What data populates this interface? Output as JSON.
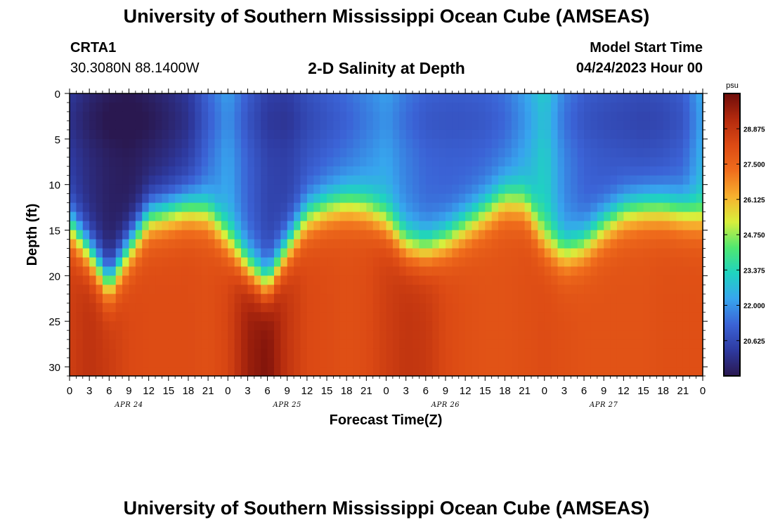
{
  "header": {
    "title": "University of Southern Mississippi Ocean Cube (AMSEAS)",
    "station_id": "CRTA1",
    "station_coords": "30.3080N  88.1400W",
    "subtitle": "2-D Salinity at Depth",
    "model_start_label": "Model Start Time",
    "model_start_value": "04/24/2023 Hour 00"
  },
  "footer": {
    "title_repeat": "University of Southern Mississippi Ocean Cube (AMSEAS)"
  },
  "colors": {
    "palette": [
      "#2a1850",
      "#2e3aa0",
      "#3b63d6",
      "#37a5ee",
      "#1fd3c0",
      "#50e870",
      "#d8ef3c",
      "#f7b02e",
      "#f06d1c",
      "#dc4a14",
      "#b32a0e",
      "#6e0c0a"
    ]
  },
  "chart_data": {
    "type": "heatmap",
    "title": "2-D Salinity at Depth",
    "xlabel": "Forecast Time(Z)",
    "ylabel": "Depth (ft)",
    "x_range_hours": [
      0,
      96
    ],
    "y_range_ft": [
      0,
      31
    ],
    "x_tick_labels": [
      "0",
      "3",
      "6",
      "9",
      "12",
      "15",
      "18",
      "21",
      "0",
      "3",
      "6",
      "9",
      "12",
      "15",
      "18",
      "21",
      "0",
      "3",
      "6",
      "9",
      "12",
      "15",
      "18",
      "21",
      "0",
      "3",
      "6",
      "9",
      "12",
      "15",
      "18",
      "21",
      "0"
    ],
    "y_tick_labels": [
      "0",
      "5",
      "10",
      "15",
      "20",
      "25",
      "30"
    ],
    "y_tick_values": [
      0,
      5,
      10,
      15,
      20,
      25,
      30
    ],
    "date_labels": [
      "APR 24",
      "APR 25",
      "APR 26",
      "APR 27"
    ],
    "colorbar": {
      "unit": "psu",
      "range": [
        19.25,
        30.25
      ],
      "tick_labels": [
        "28.875",
        "27.500",
        "26.125",
        "24.750",
        "23.375",
        "22.000",
        "20.625"
      ],
      "tick_values": [
        28.875,
        27.5,
        26.125,
        24.75,
        23.375,
        22.0,
        20.625
      ]
    },
    "halocline": {
      "hours": [
        0,
        3,
        6,
        9,
        12,
        15,
        18,
        21,
        24,
        27,
        30,
        33,
        36,
        39,
        42,
        45,
        48,
        51,
        54,
        57,
        60,
        63,
        66,
        69,
        72,
        75,
        78,
        81,
        84,
        87,
        90,
        93,
        96
      ],
      "depth_ft": [
        14.5,
        17.5,
        21.0,
        17.0,
        13.5,
        13.0,
        12.5,
        13.0,
        16.0,
        19.0,
        21.0,
        17.0,
        13.5,
        12.5,
        12.0,
        12.5,
        14.0,
        16.5,
        17.0,
        16.0,
        14.5,
        13.0,
        11.5,
        12.0,
        16.0,
        17.5,
        16.5,
        14.5,
        13.0,
        12.5,
        12.5,
        13.0,
        13.5
      ]
    },
    "surface_salinity_psu": {
      "hours": [
        0,
        3,
        6,
        9,
        12,
        15,
        18,
        21,
        24,
        27,
        30,
        33,
        36,
        39,
        42,
        45,
        48,
        51,
        54,
        57,
        60,
        63,
        66,
        69,
        72,
        75,
        78,
        81,
        84,
        87,
        90,
        93,
        96
      ],
      "values": [
        20.3,
        19.8,
        19.5,
        19.4,
        19.6,
        19.9,
        20.3,
        21.4,
        22.3,
        21.2,
        20.5,
        20.4,
        20.9,
        21.2,
        21.5,
        21.9,
        22.3,
        21.7,
        21.3,
        21.2,
        21.2,
        21.3,
        21.6,
        22.3,
        23.2,
        21.8,
        21.2,
        21.0,
        20.9,
        20.8,
        20.9,
        21.2,
        22.6
      ]
    },
    "bottom_salinity_psu": {
      "hours": [
        0,
        3,
        6,
        9,
        12,
        15,
        18,
        21,
        24,
        27,
        30,
        33,
        36,
        39,
        42,
        45,
        48,
        51,
        54,
        57,
        60,
        63,
        66,
        69,
        72,
        75,
        78,
        81,
        84,
        87,
        90,
        93,
        96
      ],
      "values": [
        28.6,
        29.0,
        28.7,
        28.3,
        28.2,
        28.2,
        28.2,
        28.1,
        28.4,
        29.6,
        30.0,
        28.9,
        28.3,
        28.2,
        28.1,
        28.2,
        28.6,
        28.9,
        28.8,
        28.3,
        28.1,
        28.0,
        28.0,
        28.1,
        28.2,
        28.1,
        28.0,
        28.0,
        28.0,
        28.0,
        28.1,
        28.1,
        28.1
      ]
    }
  }
}
